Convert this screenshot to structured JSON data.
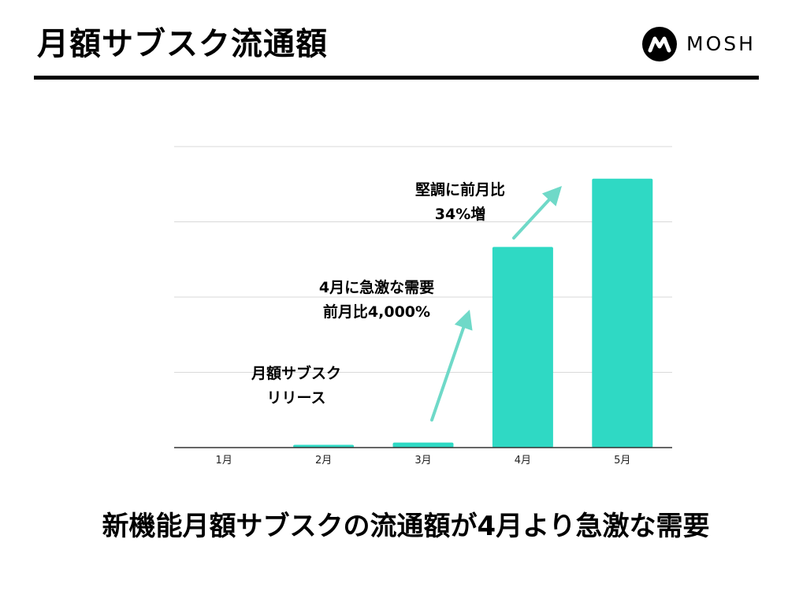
{
  "header": {
    "title": "月額サブスク流通額",
    "logo_text": "MOSH"
  },
  "chart_data": {
    "type": "bar",
    "title": "月額サブスク流通額",
    "xlabel": "",
    "ylabel": "",
    "categories": [
      "1月",
      "2月",
      "3月",
      "4月",
      "5月"
    ],
    "values": [
      0,
      0.55,
      1.0,
      40.0,
      53.6
    ],
    "ylim": [
      0,
      60
    ],
    "grid": true,
    "bar_color": "#2FD9C4",
    "annotation_arrow_color": "#6FD9C8",
    "annotations": [
      {
        "lines": [
          "月額サブスク",
          "リリース"
        ]
      },
      {
        "lines": [
          "4月に急激な需要",
          "前月比4,000%"
        ]
      },
      {
        "lines": [
          "堅調に前月比",
          "34%増"
        ]
      }
    ]
  },
  "footer": {
    "message": "新機能月額サブスクの流通額が4月より急激な需要"
  },
  "colors": {
    "text": "#000000",
    "bar": "#2FD9C4",
    "grid": "#D9D9D9",
    "axis": "#333333"
  }
}
